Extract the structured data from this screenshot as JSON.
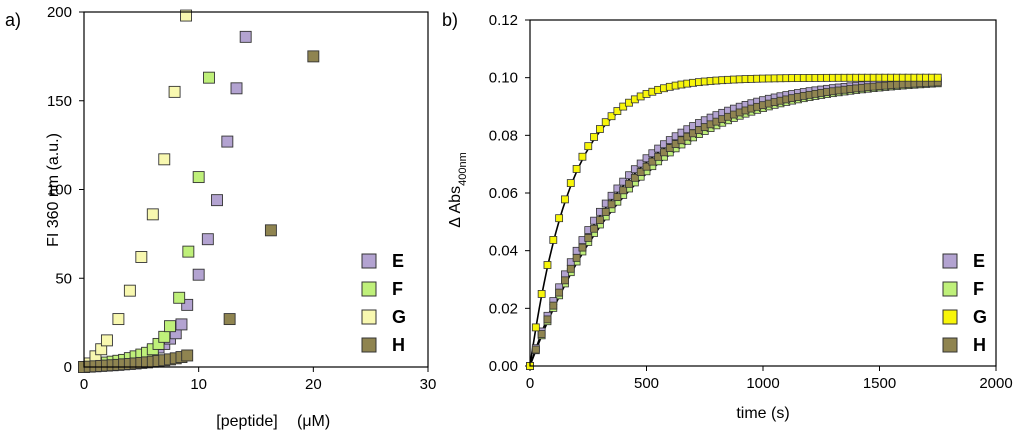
{
  "chart_data": [
    {
      "panel_label": "a)",
      "type": "scatter",
      "xlabel": "[peptide]",
      "xunit": "(μM)",
      "ylabel": "FI 360 nm (a.u.)",
      "xlim": [
        0,
        30
      ],
      "ylim": [
        0,
        200
      ],
      "xticks": [
        "0",
        "10",
        "20",
        "30"
      ],
      "yticks": [
        "0",
        "50",
        "100",
        "150",
        "200"
      ],
      "legend_position": "bottom-right",
      "series": [
        {
          "name": "E",
          "color": "#b3a3d1",
          "x": [
            0,
            0.5,
            1,
            1.5,
            2,
            2.5,
            3,
            3.5,
            4,
            4.5,
            5,
            5.5,
            6,
            6.5,
            7,
            7.5,
            8,
            8.5,
            9,
            10,
            10.8,
            11.6,
            12.5,
            13.3,
            14.1
          ],
          "y": [
            0,
            0.5,
            1,
            1.5,
            2,
            2.5,
            3,
            3.5,
            4,
            5,
            6,
            7,
            9,
            11,
            13,
            16,
            19,
            24,
            35,
            52,
            72,
            94,
            127,
            157,
            186
          ]
        },
        {
          "name": "F",
          "color": "#bff07a",
          "x": [
            0,
            0.5,
            1,
            1.5,
            2,
            2.5,
            3,
            3.5,
            4,
            4.5,
            5,
            5.5,
            6,
            6.5,
            7,
            7.5,
            8.3,
            9.1,
            10,
            10.9
          ],
          "y": [
            0,
            0.5,
            1,
            2,
            2.5,
            3,
            3.5,
            4,
            5,
            6,
            7,
            8,
            10,
            13,
            17,
            23,
            39,
            65,
            107,
            163
          ]
        },
        {
          "name": "G",
          "color": "#f8f8b0",
          "x": [
            0,
            0.5,
            1,
            1.5,
            2,
            3,
            4,
            5,
            6,
            7,
            7.9,
            8.9
          ],
          "y": [
            0,
            2,
            6,
            10,
            15,
            27,
            43,
            62,
            86,
            117,
            155,
            198
          ]
        },
        {
          "name": "H",
          "color": "#8f8450",
          "x": [
            0,
            0.5,
            1,
            1.5,
            2,
            2.5,
            3,
            3.5,
            4,
            4.5,
            5,
            5.5,
            6,
            6.5,
            7,
            7.5,
            8,
            8.5,
            9,
            12.7,
            16.3,
            20
          ],
          "y": [
            0,
            0.2,
            0.4,
            0.6,
            0.8,
            1,
            1.2,
            1.5,
            1.7,
            2,
            2.3,
            2.6,
            3,
            3.4,
            3.8,
            4.3,
            4.9,
            5.6,
            6.5,
            27,
            77,
            175
          ]
        }
      ]
    },
    {
      "panel_label": "b)",
      "type": "scatter",
      "xlabel": "time (s)",
      "ylabel_main": "Δ Abs",
      "ylabel_sub": "400nm",
      "xlim": [
        0,
        2000
      ],
      "ylim": [
        0,
        0.12
      ],
      "xticks": [
        "0",
        "500",
        "1000",
        "1500",
        "2000"
      ],
      "yticks": [
        "0.00",
        "0.02",
        "0.04",
        "0.06",
        "0.08",
        "0.10",
        "0.12"
      ],
      "legend_position": "bottom-right",
      "series": [
        {
          "name": "E",
          "color": "#b3a3d1",
          "k": 0.00255,
          "amp": 0.1,
          "sampling": "0-1760 s every 25 s"
        },
        {
          "name": "F",
          "color": "#bff07a",
          "k": 0.00225,
          "amp": 0.1,
          "sampling": "0-1760 s every 25 s"
        },
        {
          "name": "G",
          "color": "#f8f60a",
          "k": 0.00575,
          "amp": 0.1,
          "sampling": "0-1760 s every 25 s"
        },
        {
          "name": "H",
          "color": "#8f8450",
          "k": 0.00235,
          "amp": 0.1,
          "sampling": "0-1760 s every 25 s"
        }
      ],
      "fit_lines": [
        {
          "k": 0.0056,
          "amp": 0.1
        },
        {
          "k": 0.00245,
          "amp": 0.1
        },
        {
          "k": 0.0022,
          "amp": 0.1
        }
      ]
    }
  ]
}
